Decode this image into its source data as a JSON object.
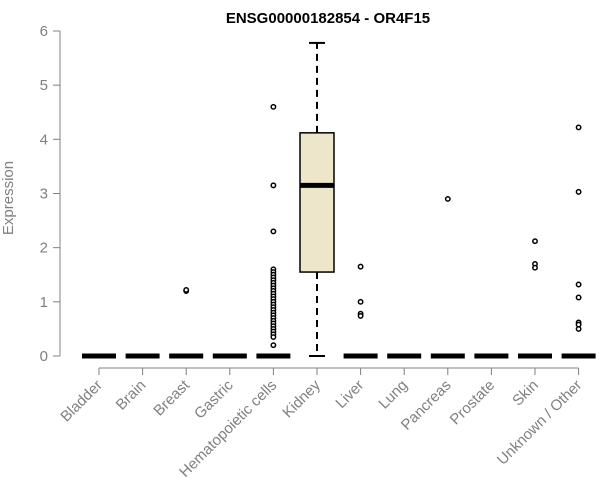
{
  "chart_data": {
    "type": "box",
    "title": "ENSG00000182854 - OR4F15",
    "xlabel": "",
    "ylabel": "Expression",
    "ylim": [
      0,
      6
    ],
    "yticks": [
      0,
      1,
      2,
      3,
      4,
      5,
      6
    ],
    "categories": [
      "Bladder",
      "Brain",
      "Breast",
      "Gastric",
      "Hematopoietic cells",
      "Kidney",
      "Liver",
      "Lung",
      "Pancreas",
      "Prostate",
      "Skin",
      "Unknown / Other"
    ],
    "boxes": [
      {
        "category": "Bladder",
        "q1": 0,
        "median": 0,
        "q3": 0,
        "whisker_low": 0,
        "whisker_high": 0,
        "outliers": []
      },
      {
        "category": "Brain",
        "q1": 0,
        "median": 0,
        "q3": 0,
        "whisker_low": 0,
        "whisker_high": 0,
        "outliers": []
      },
      {
        "category": "Breast",
        "q1": 0,
        "median": 0,
        "q3": 0,
        "whisker_low": 0,
        "whisker_high": 0,
        "outliers": [
          1.2,
          1.22
        ]
      },
      {
        "category": "Gastric",
        "q1": 0,
        "median": 0,
        "q3": 0,
        "whisker_low": 0,
        "whisker_high": 0,
        "outliers": []
      },
      {
        "category": "Hematopoietic cells",
        "q1": 0,
        "median": 0,
        "q3": 0,
        "whisker_low": 0,
        "whisker_high": 0,
        "outliers": [
          4.6,
          3.15,
          2.3,
          1.6,
          1.55,
          1.5,
          1.45,
          1.4,
          1.35,
          1.3,
          1.25,
          1.2,
          1.15,
          1.1,
          1.05,
          1.0,
          0.95,
          0.9,
          0.85,
          0.8,
          0.75,
          0.7,
          0.65,
          0.6,
          0.55,
          0.5,
          0.45,
          0.4,
          0.35,
          0.2
        ]
      },
      {
        "category": "Kidney",
        "q1": 1.55,
        "median": 3.15,
        "q3": 4.12,
        "whisker_low": 0,
        "whisker_high": 5.78,
        "outliers": []
      },
      {
        "category": "Liver",
        "q1": 0,
        "median": 0,
        "q3": 0,
        "whisker_low": 0,
        "whisker_high": 0,
        "outliers": [
          1.65,
          1.0,
          0.78,
          0.74
        ]
      },
      {
        "category": "Lung",
        "q1": 0,
        "median": 0,
        "q3": 0,
        "whisker_low": 0,
        "whisker_high": 0,
        "outliers": []
      },
      {
        "category": "Pancreas",
        "q1": 0,
        "median": 0,
        "q3": 0,
        "whisker_low": 0,
        "whisker_high": 0,
        "outliers": [
          2.9
        ]
      },
      {
        "category": "Prostate",
        "q1": 0,
        "median": 0,
        "q3": 0,
        "whisker_low": 0,
        "whisker_high": 0,
        "outliers": []
      },
      {
        "category": "Skin",
        "q1": 0,
        "median": 0,
        "q3": 0,
        "whisker_low": 0,
        "whisker_high": 0,
        "outliers": [
          2.12,
          1.7,
          1.63
        ]
      },
      {
        "category": "Unknown / Other",
        "q1": 0,
        "median": 0,
        "q3": 0,
        "whisker_low": 0,
        "whisker_high": 0,
        "outliers": [
          4.22,
          3.03,
          1.32,
          1.08,
          0.62,
          0.58,
          0.5
        ]
      }
    ],
    "colors": {
      "box_fill": "#ede6cb",
      "box_stroke": "#000000",
      "axis": "#808080",
      "text_muted": "#808080",
      "title": "#000000"
    },
    "grid": false,
    "legend": "none"
  }
}
